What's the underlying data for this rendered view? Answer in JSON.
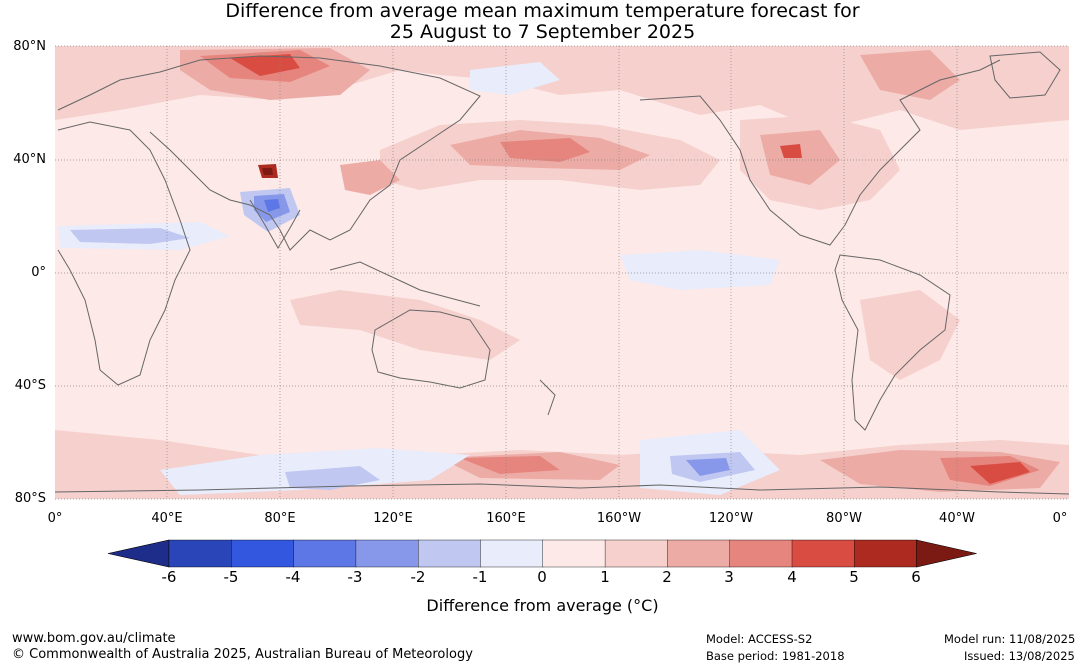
{
  "title": {
    "line1": "Difference from average mean maximum temperature forecast for",
    "line2": "25 August to 7 September 2025"
  },
  "axes": {
    "lat_labels": [
      "80°N",
      "40°N",
      "0°",
      "40°S",
      "80°S"
    ],
    "lon_labels": [
      "0°",
      "40°E",
      "80°E",
      "120°E",
      "160°E",
      "160°W",
      "120°W",
      "80°W",
      "40°W",
      "0°"
    ]
  },
  "colorbar": {
    "ticks": [
      "-6",
      "-5",
      "-4",
      "-3",
      "-2",
      "-1",
      "0",
      "1",
      "2",
      "3",
      "4",
      "5",
      "6"
    ],
    "colors": [
      "#1f2d8a",
      "#2a45b8",
      "#3357de",
      "#5d78e6",
      "#8798ea",
      "#c0c8f2",
      "#e8ecfb",
      "#fde9e7",
      "#f5d0cd",
      "#edaba6",
      "#e6857e",
      "#d94c42",
      "#ad2a21",
      "#7a1a13"
    ],
    "label": "Difference from average (°C)"
  },
  "footer": {
    "url": "www.bom.gov.au/climate",
    "copyright": "© Commonwealth of Australia 2025, Australian Bureau of Meteorology",
    "model": "Model: ACCESS-S2",
    "base_period": "Base period: 1981-2018",
    "model_run": "Model run: 11/08/2025",
    "issued": "Issued: 13/08/2025"
  }
}
